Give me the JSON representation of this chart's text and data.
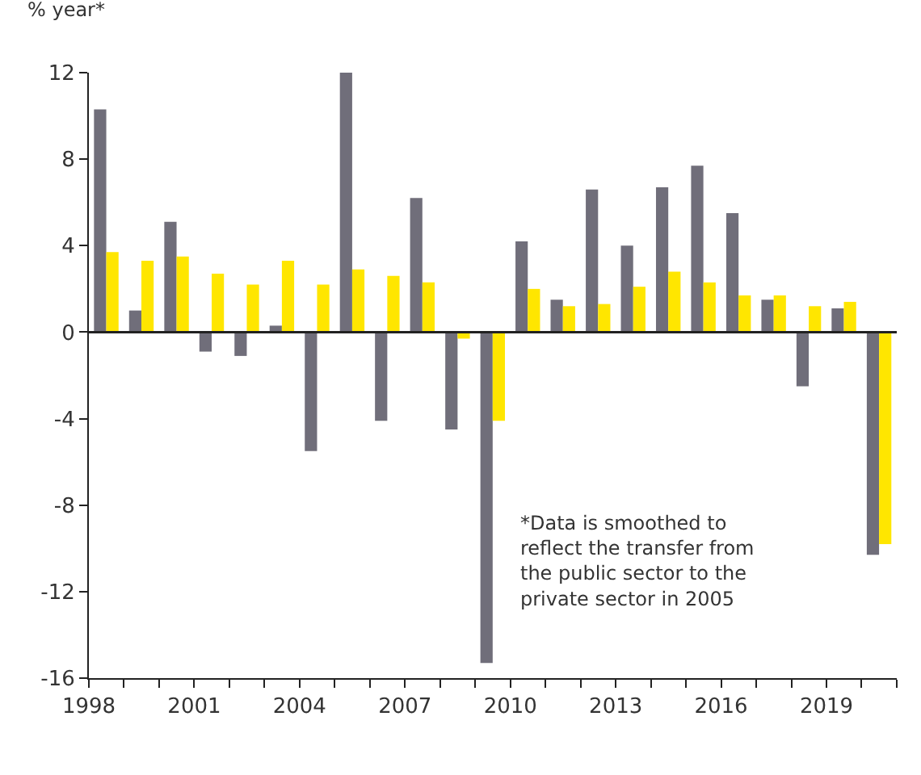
{
  "chart_data": {
    "type": "bar",
    "ylabel": "% year*",
    "x": [
      "1998-07",
      "1999-07",
      "2000-07",
      "2001-07",
      "2002-07",
      "2003-07",
      "2004-07",
      "2005-07",
      "2006-07",
      "2007-07",
      "2008-07",
      "2009-07",
      "2010-07",
      "2011-07",
      "2012-07",
      "2013-07",
      "2014-07",
      "2015-07",
      "2016-07",
      "2017-07",
      "2018-07",
      "2019-07",
      "2020-07"
    ],
    "series": [
      {
        "color": "#706e7a",
        "values": [
          10.3,
          1.0,
          5.1,
          -0.9,
          -1.1,
          0.3,
          -5.5,
          12.0,
          -4.1,
          6.2,
          -4.5,
          -15.3,
          4.2,
          1.5,
          6.6,
          4.0,
          6.7,
          7.7,
          5.5,
          1.5,
          -2.5,
          1.1,
          -10.3
        ]
      },
      {
        "color": "#ffe600",
        "values": [
          3.7,
          3.3,
          3.5,
          2.7,
          2.2,
          3.3,
          2.2,
          2.9,
          2.6,
          2.3,
          -0.3,
          -4.1,
          2.0,
          1.2,
          1.3,
          2.1,
          2.8,
          2.3,
          1.7,
          1.7,
          1.2,
          1.4,
          -9.8
        ]
      }
    ],
    "xlim": [
      "1998",
      "2021"
    ],
    "xticks": [
      {
        "value": "1998",
        "label": "1998"
      },
      {
        "value": "1999",
        "label": null
      },
      {
        "value": "2000",
        "label": null
      },
      {
        "value": "2001",
        "label": "2001"
      },
      {
        "value": "2002",
        "label": null
      },
      {
        "value": "2003",
        "label": null
      },
      {
        "value": "2004",
        "label": "2004"
      },
      {
        "value": "2005",
        "label": null
      },
      {
        "value": "2006",
        "label": null
      },
      {
        "value": "2007",
        "label": "2007"
      },
      {
        "value": "2008",
        "label": null
      },
      {
        "value": "2009",
        "label": null
      },
      {
        "value": "2010",
        "label": "2010"
      },
      {
        "value": "2011",
        "label": null
      },
      {
        "value": "2012",
        "label": null
      },
      {
        "value": "2013",
        "label": "2013"
      },
      {
        "value": "2014",
        "label": null
      },
      {
        "value": "2015",
        "label": null
      },
      {
        "value": "2016",
        "label": "2016"
      },
      {
        "value": "2017",
        "label": null
      },
      {
        "value": "2018",
        "label": null
      },
      {
        "value": "2019",
        "label": "2019"
      },
      {
        "value": "2020",
        "label": null
      },
      {
        "value": "2021",
        "label": null
      }
    ],
    "ylim": [
      -16,
      12
    ],
    "yticks": [
      -16,
      -12,
      -8,
      -4,
      0,
      4,
      8,
      12
    ],
    "ref_lines": [
      {
        "axis": "y",
        "value": 0,
        "color": "#222222"
      }
    ],
    "annotations": [
      "*Data is smoothed to reflect the transfer from the public sector to the private sector in 2005"
    ]
  }
}
